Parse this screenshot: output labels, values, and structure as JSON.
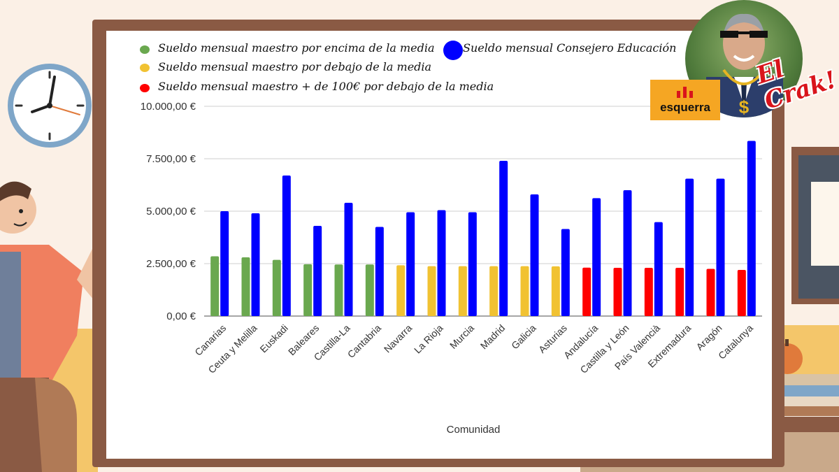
{
  "chart_data": {
    "type": "bar",
    "xlabel": "Comunidad",
    "ylabel": "",
    "ylim": [
      0,
      10000
    ],
    "yticks": [
      "0,00 €",
      "2.500,00 €",
      "5.000,00 €",
      "7.500,00 €",
      "10.000,00 €"
    ],
    "ytick_values": [
      0,
      2500,
      5000,
      7500,
      10000
    ],
    "grid": true,
    "legend_position": "top",
    "categories": [
      "Canarias",
      "Ceuta y Melilla",
      "Euskadi",
      "Baleares",
      "Castilla-La",
      "Cantabria",
      "Navarra",
      "La Rioja",
      "Murcia",
      "Madrid",
      "Galicia",
      "Asturias",
      "Andalucía",
      "Castilla y León",
      "País Valencià",
      "Extremadura",
      "Aragón",
      "Catalunya"
    ],
    "series": [
      {
        "name": "Sueldo mensual maestro",
        "values": [
          2850,
          2800,
          2680,
          2470,
          2460,
          2460,
          2420,
          2380,
          2380,
          2380,
          2380,
          2370,
          2310,
          2300,
          2300,
          2300,
          2250,
          2200
        ],
        "bar_colors": [
          "#6aa84f",
          "#6aa84f",
          "#6aa84f",
          "#6aa84f",
          "#6aa84f",
          "#6aa84f",
          "#f1c232",
          "#f1c232",
          "#f1c232",
          "#f1c232",
          "#f1c232",
          "#f1c232",
          "#ff0000",
          "#ff0000",
          "#ff0000",
          "#ff0000",
          "#ff0000",
          "#ff0000"
        ]
      },
      {
        "name": "Sueldo mensual Consejero Educación",
        "values": [
          5000,
          4900,
          6700,
          4300,
          5400,
          4250,
          4950,
          5050,
          4950,
          7400,
          5800,
          4150,
          5620,
          6000,
          4480,
          6550,
          6550,
          8350
        ],
        "color": "#0000ff"
      }
    ]
  },
  "legend": {
    "green": {
      "label": "Sueldo mensual maestro por encima de la media",
      "color": "#6aa84f"
    },
    "yellow": {
      "label": "Sueldo mensual maestro por debajo de la media",
      "color": "#f1c232"
    },
    "red": {
      "label": "Sueldo mensual maestro + de 100€ por debajo de la media",
      "color": "#ff0000"
    },
    "blue": {
      "label": "Sueldo mensual Consejero Educación",
      "color": "#0000ff"
    }
  },
  "logo": {
    "text": "esquerra"
  },
  "sticker": {
    "text": "El Crak!"
  }
}
